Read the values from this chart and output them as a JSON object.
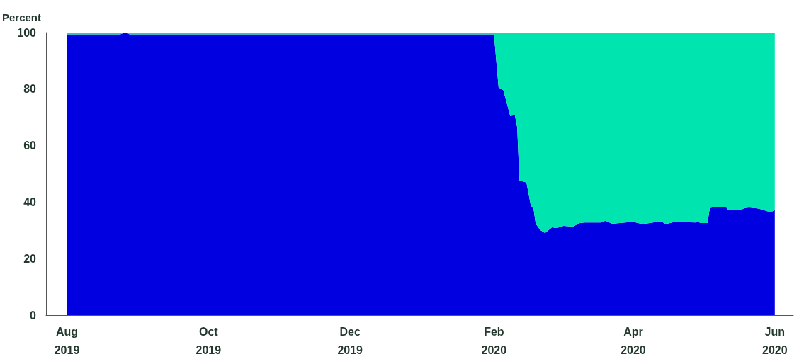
{
  "chart_data": {
    "type": "area",
    "ylabel": "Percent",
    "stacked": true,
    "x": [
      "2019-08-01",
      "2019-08-24",
      "2019-08-26",
      "2019-08-28",
      "2020-02-01",
      "2020-02-03",
      "2020-02-05",
      "2020-02-08",
      "2020-02-10",
      "2020-02-11",
      "2020-02-12",
      "2020-02-15",
      "2020-02-17",
      "2020-02-18",
      "2020-02-19",
      "2020-02-21",
      "2020-02-23",
      "2020-02-26",
      "2020-02-28",
      "2020-03-02",
      "2020-03-06",
      "2020-03-09",
      "2020-03-11",
      "2020-03-18",
      "2020-03-20",
      "2020-03-23",
      "2020-03-26",
      "2020-04-01",
      "2020-04-05",
      "2020-04-13",
      "2020-04-15",
      "2020-04-19",
      "2020-04-28",
      "2020-04-29",
      "2020-04-30",
      "2020-05-03",
      "2020-05-04",
      "2020-05-05",
      "2020-05-07",
      "2020-05-11",
      "2020-05-12",
      "2020-05-17",
      "2020-05-19",
      "2020-05-21",
      "2020-05-25",
      "2020-05-29",
      "2020-05-31",
      "2020-06-01"
    ],
    "series": [
      {
        "color": "#0000e0",
        "values": [
          99.4,
          99.4,
          100,
          99.4,
          99.4,
          80.6,
          79.7,
          70.5,
          70.8,
          66.5,
          47.7,
          46.9,
          38.3,
          37.9,
          32.3,
          30.1,
          29.1,
          31.1,
          30.8,
          31.6,
          31.3,
          32.6,
          32.8,
          32.8,
          33.4,
          32.3,
          32.6,
          33.0,
          32.2,
          33.2,
          32.2,
          33.0,
          32.8,
          33.0,
          32.6,
          32.6,
          37.9,
          38.1,
          38.2,
          38.2,
          37.1,
          37.1,
          37.9,
          38.1,
          37.7,
          36.7,
          36.7,
          37.4
        ]
      },
      {
        "color": "#00e5b0",
        "values": [
          0.6,
          0.6,
          0,
          0.6,
          0.6,
          19.4,
          20.3,
          29.5,
          29.2,
          33.5,
          52.3,
          53.1,
          61.7,
          62.1,
          67.7,
          69.9,
          70.9,
          68.9,
          69.2,
          68.4,
          68.7,
          67.4,
          67.2,
          67.2,
          66.6,
          67.7,
          67.4,
          67.0,
          67.8,
          66.8,
          67.8,
          67.0,
          67.2,
          67.0,
          67.4,
          67.4,
          62.1,
          61.9,
          61.8,
          61.8,
          62.9,
          62.9,
          62.1,
          61.9,
          62.3,
          63.3,
          63.3,
          62.6
        ]
      }
    ],
    "xlim": [
      "2019-07-23",
      "2020-06-09"
    ],
    "xticks": [
      {
        "value": "2019-08-01",
        "label": "Aug\n2019"
      },
      {
        "value": "2019-10-01",
        "label": "Oct\n2019"
      },
      {
        "value": "2019-12-01",
        "label": "Dec\n2019"
      },
      {
        "value": "2020-02-01",
        "label": "Feb\n2020"
      },
      {
        "value": "2020-04-01",
        "label": "Apr\n2020"
      },
      {
        "value": "2020-06-01",
        "label": "Jun\n2020"
      }
    ],
    "ylim": [
      0,
      100
    ],
    "yticks": [
      0,
      20,
      40,
      60,
      80,
      100
    ]
  }
}
